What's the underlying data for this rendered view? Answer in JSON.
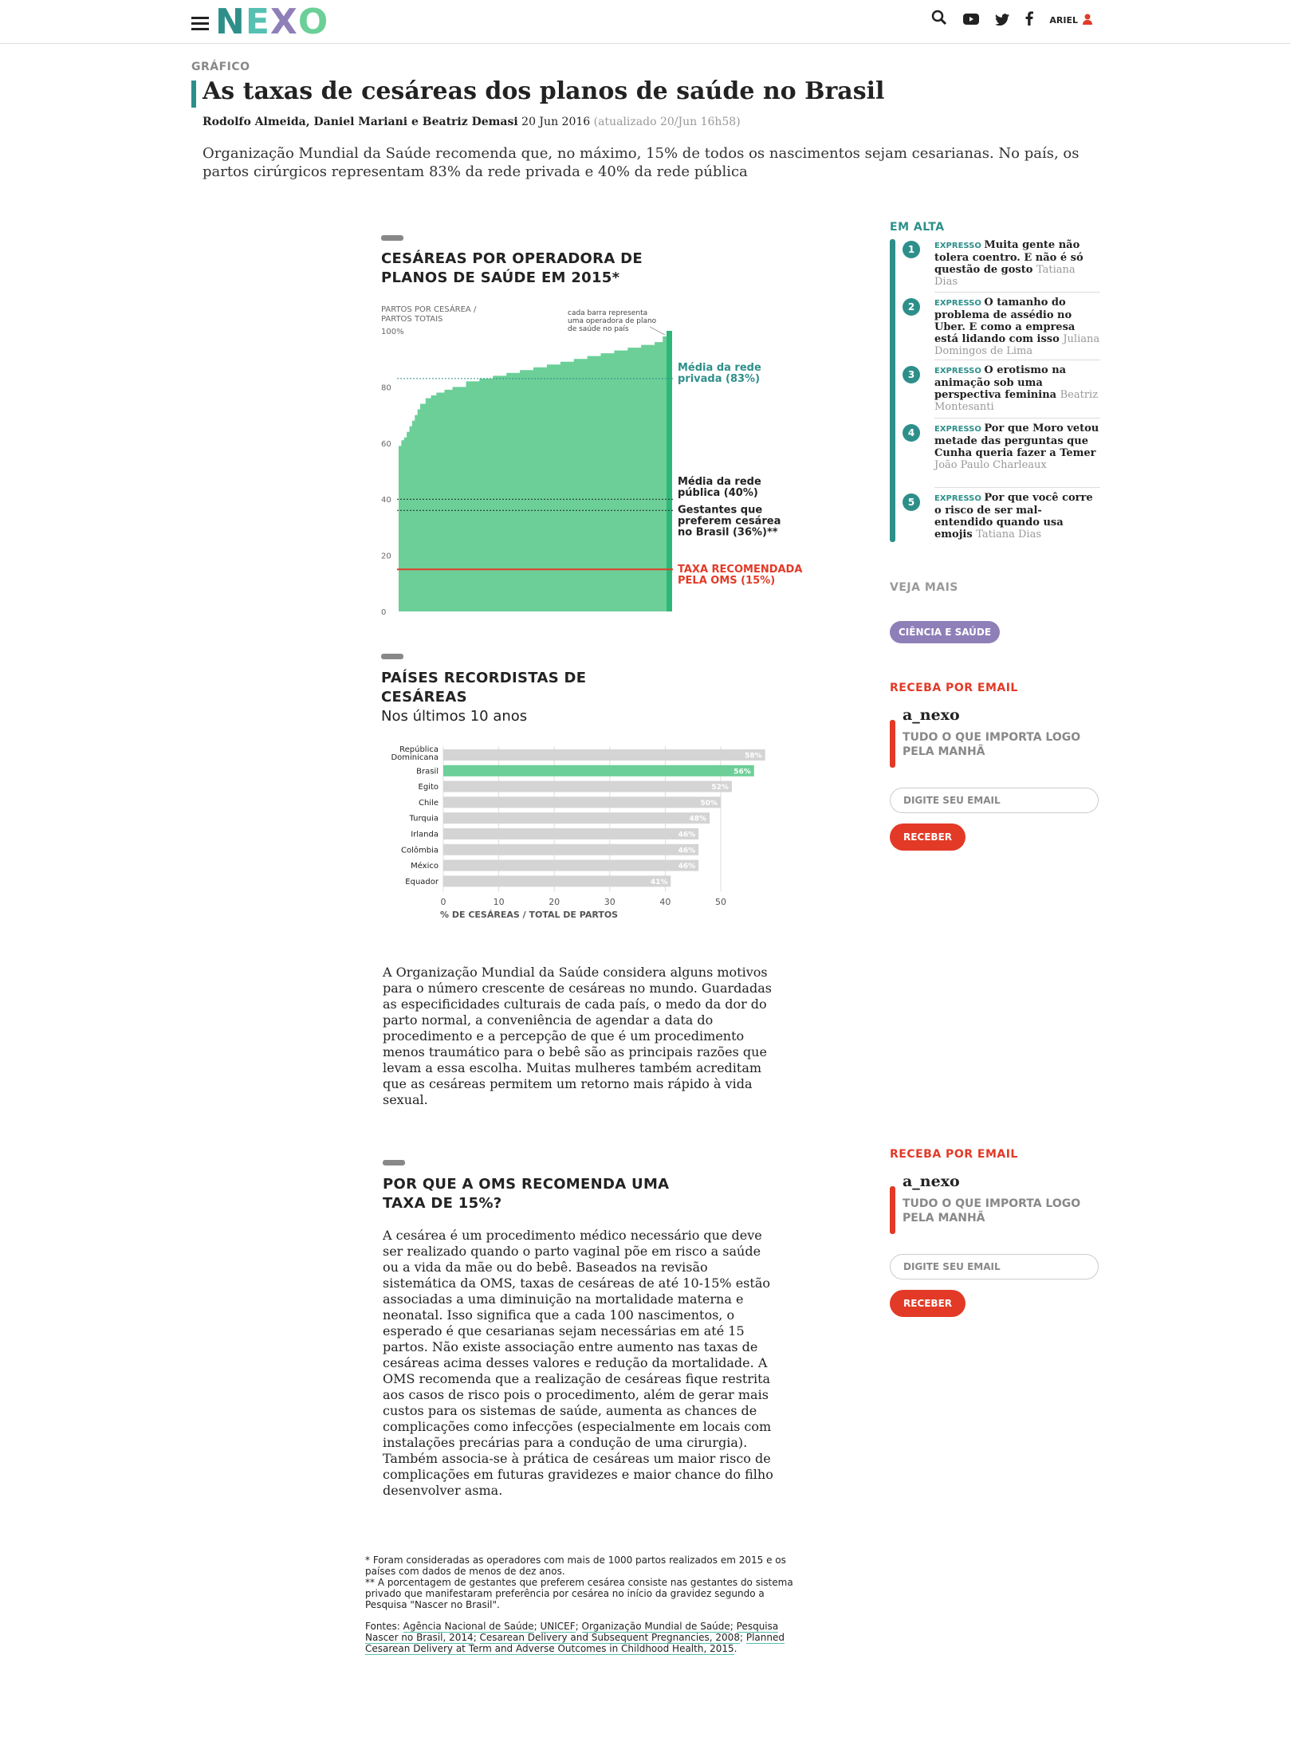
{
  "header": {
    "logo": "NEXO",
    "user_name": "ARIEL",
    "icons": [
      "menu-icon",
      "search-icon",
      "youtube-icon",
      "twitter-icon",
      "facebook-icon",
      "user-icon"
    ]
  },
  "article": {
    "kicker": "GRÁFICO",
    "title": "As taxas de cesáreas dos planos de saúde no Brasil",
    "authors": "Rodolfo Almeida, Daniel Mariani e Beatriz Demasi",
    "date": "20 Jun 2016",
    "updated": "(atualizado 20/Jun 16h58)",
    "lede": "Organização Mundial da Saúde recomenda que, no máximo, 15% de todos os nascimentos sejam cesarianas. No país, os partos cirúrgicos representam 83% da rede privada e 40% da rede pública",
    "body1": "A Organização Mundial da Saúde considera alguns motivos para o número crescente de cesáreas no mundo. Guardadas as especificidades culturais de cada país, o medo da dor do parto normal, a conveniência de agendar a data do procedimento e a percepção de que é um procedimento menos traumático para o bebê são as principais razões que levam a essa escolha. Muitas mulheres também acreditam que as cesáreas permitem um retorno mais rápido à vida sexual.",
    "section3_title": "POR QUE A OMS RECOMENDA UMA TAXA DE 15%?",
    "body2": "A cesárea é um procedimento médico necessário que deve ser realizado quando o parto vaginal põe em risco a saúde ou a vida da mãe ou do bebê. Baseados na revisão sistemática da OMS, taxas de cesáreas de até 10-15% estão associadas a uma diminuição na mortalidade materna e neonatal. Isso significa que a cada 100 nascimentos, o esperado é que cesarianas sejam necessárias em até 15 partos. Não existe associação entre aumento nas taxas de cesáreas acima desses valores e redução da mortalidade. A OMS recomenda que a realização de cesáreas fique restrita aos casos de risco pois o procedimento, além de gerar mais custos para os sistemas de saúde, aumenta as chances de complicações como infecções (especialmente em locais com instalações precárias para a condução de uma cirurgia). Também associa-se à prática de cesáreas um maior risco de complicações em futuras gravidezes e maior chance do filho desenvolver asma.",
    "footnote1": "* Foram consideradas as operadores com mais de 1000 partos realizados em 2015 e os países com dados de menos de dez anos.",
    "footnote2": "** A porcentagem de gestantes que preferem cesárea consiste nas gestantes do sistema privado que manifestaram preferência por cesárea no início da gravidez segundo a Pesquisa \"Nascer no Brasil\".",
    "sources_label": "Fontes:",
    "sources": [
      "Agência Nacional de Saúde",
      "UNICEF",
      "Organização Mundial de Saúde",
      "Pesquisa Nascer no Brasil, 2014",
      "Cesarean Delivery and Subsequent Pregnancies, 2008",
      "Planned Cesarean Delivery at Term and Adverse Outcomes in Childhood Health, 2015"
    ]
  },
  "chart_data": [
    {
      "type": "bar",
      "title": "CESÁREAS POR OPERADORA DE PLANOS DE SAÚDE EM 2015*",
      "ylabel": "PARTOS POR CESÁREA / PARTOS TOTAIS",
      "ylim": [
        0,
        100
      ],
      "yticks": [
        "100%",
        "80",
        "60",
        "40",
        "20",
        "0"
      ],
      "note": "cada barra representa uma operadora de plano de saúde no país",
      "color": "#6ccf98",
      "curve": [
        [
          0,
          59
        ],
        [
          0.01,
          61
        ],
        [
          0.02,
          62
        ],
        [
          0.03,
          64
        ],
        [
          0.04,
          66
        ],
        [
          0.05,
          68
        ],
        [
          0.06,
          70
        ],
        [
          0.07,
          72
        ],
        [
          0.08,
          74
        ],
        [
          0.1,
          76
        ],
        [
          0.12,
          77
        ],
        [
          0.14,
          78
        ],
        [
          0.17,
          79
        ],
        [
          0.2,
          80
        ],
        [
          0.25,
          82
        ],
        [
          0.3,
          83
        ],
        [
          0.35,
          84
        ],
        [
          0.4,
          85
        ],
        [
          0.45,
          86
        ],
        [
          0.5,
          87
        ],
        [
          0.55,
          88
        ],
        [
          0.6,
          89
        ],
        [
          0.65,
          90
        ],
        [
          0.7,
          91
        ],
        [
          0.75,
          92
        ],
        [
          0.8,
          93
        ],
        [
          0.85,
          94
        ],
        [
          0.9,
          95
        ],
        [
          0.95,
          96
        ],
        [
          0.98,
          98
        ],
        [
          1,
          100
        ]
      ],
      "reference_lines": [
        {
          "value": 83,
          "label": "Média da rede privada (83%)",
          "color": "#2e8f8a"
        },
        {
          "value": 40,
          "label": "Média da rede pública (40%)",
          "color": "#222222"
        },
        {
          "value": 36,
          "label": "Gestantes que preferem cesárea no Brasil (36%)**",
          "color": "#222222"
        },
        {
          "value": 15,
          "label": "TAXA RECOMENDADA PELA OMS (15%)",
          "color": "#e23a27"
        }
      ]
    },
    {
      "type": "bar",
      "title": "PAÍSES RECORDISTAS DE CESÁREAS",
      "subtitle": "Nos últimos 10 anos",
      "xlabel": "% DE CESÁREAS / TOTAL DE PARTOS",
      "xlim": [
        0,
        50
      ],
      "xticks": [
        "0",
        "10",
        "20",
        "30",
        "40",
        "50"
      ],
      "categories": [
        "República Dominicana",
        "Brasil",
        "Egito",
        "Chile",
        "Turquia",
        "Irlanda",
        "Colômbia",
        "México",
        "Equador"
      ],
      "values": [
        58,
        56,
        52,
        50,
        48,
        46,
        46,
        46,
        41
      ],
      "value_labels": [
        "58%",
        "56%",
        "52%",
        "50%",
        "48%",
        "46%",
        "46%",
        "46%",
        "41%"
      ],
      "highlight": "Brasil",
      "highlight_color": "#6ccf98",
      "bar_color": "#d4d4d4"
    }
  ],
  "sidebar": {
    "trending_title": "EM ALTA",
    "trending": [
      {
        "num": "1",
        "tag": "EXPRESSO",
        "title": "Muita gente não tolera coentro. E não é só questão de gosto",
        "author": "Tatiana Dias"
      },
      {
        "num": "2",
        "tag": "EXPRESSO",
        "title": "O tamanho do problema de assédio no Uber. E como a empresa está lidando com isso",
        "author": "Juliana Domingos de Lima"
      },
      {
        "num": "3",
        "tag": "EXPRESSO",
        "title": "O erotismo na animação sob uma perspectiva feminina",
        "author": "Beatriz Montesanti"
      },
      {
        "num": "4",
        "tag": "EXPRESSO",
        "title": "Por que Moro vetou metade das perguntas que Cunha queria fazer a Temer",
        "author": "João Paulo Charleaux"
      },
      {
        "num": "5",
        "tag": "EXPRESSO",
        "title": "Por que você corre o risco de ser mal-entendido quando usa emojis",
        "author": "Tatiana Dias"
      }
    ],
    "see_more": "VEJA MAIS",
    "tag": "CIÊNCIA E SAÚDE",
    "newsletter": {
      "title": "RECEBA POR EMAIL",
      "name": "a_nexo",
      "desc": "TUDO O QUE IMPORTA LOGO PELA MANHÃ",
      "placeholder": "DIGITE SEU EMAIL",
      "button": "RECEBER"
    }
  },
  "colors": {
    "teal": "#2e8f8a",
    "green": "#6ccf98",
    "red": "#e23a27",
    "purple": "#8f7fb8"
  }
}
